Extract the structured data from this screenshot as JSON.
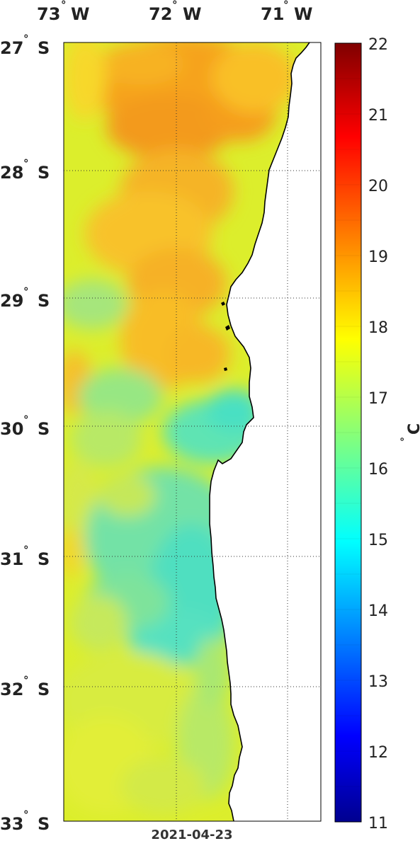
{
  "map": {
    "date": "2021-04-23",
    "lon_labels": [
      {
        "deg": "73",
        "hemi": "W"
      },
      {
        "deg": "72",
        "hemi": "W"
      },
      {
        "deg": "71",
        "hemi": "W"
      }
    ],
    "lat_labels": [
      {
        "deg": "27",
        "hemi": "S"
      },
      {
        "deg": "28",
        "hemi": "S"
      },
      {
        "deg": "29",
        "hemi": "S"
      },
      {
        "deg": "30",
        "hemi": "S"
      },
      {
        "deg": "31",
        "hemi": "S"
      },
      {
        "deg": "32",
        "hemi": "S"
      },
      {
        "deg": "33",
        "hemi": "S"
      }
    ],
    "lon_range": [
      -73.0,
      -70.3
    ],
    "lat_range": [
      -33.0,
      -27.0
    ],
    "grid": "dotted"
  },
  "colorbar": {
    "unit_deg": "°",
    "unit": "C",
    "min": 11,
    "max": 22,
    "ticks": [
      "22",
      "21",
      "20",
      "19",
      "18",
      "17",
      "16",
      "15",
      "14",
      "13",
      "12",
      "11"
    ],
    "colormap": "jet"
  }
}
